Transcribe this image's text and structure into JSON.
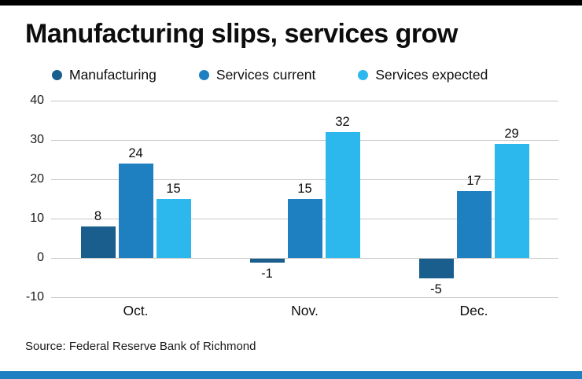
{
  "page": {
    "title": "Manufacturing slips, services grow",
    "source": "Source: Federal Reserve Bank of Richmond"
  },
  "colors": {
    "top_bar": "#000000",
    "bottom_bar": "#1e7fc1",
    "gridline": "#c8c8c8",
    "background": "#ffffff",
    "text": "#0d0d0d"
  },
  "chart_data": {
    "type": "bar",
    "title": "Manufacturing slips, services grow",
    "categories": [
      "Oct.",
      "Nov.",
      "Dec."
    ],
    "series": [
      {
        "name": "Manufacturing",
        "color": "#1a5e8e",
        "values": [
          8,
          -1,
          -5
        ]
      },
      {
        "name": "Services current",
        "color": "#1e7fc1",
        "values": [
          24,
          15,
          17
        ]
      },
      {
        "name": "Services expected",
        "color": "#2cb8ec",
        "values": [
          15,
          32,
          29
        ]
      }
    ],
    "xlabel": "",
    "ylabel": "",
    "ylim": [
      -10,
      40
    ],
    "yticks": [
      40,
      30,
      20,
      10,
      0,
      -10
    ],
    "grid": true,
    "legend_position": "top",
    "source": "Source: Federal Reserve Bank of Richmond"
  }
}
